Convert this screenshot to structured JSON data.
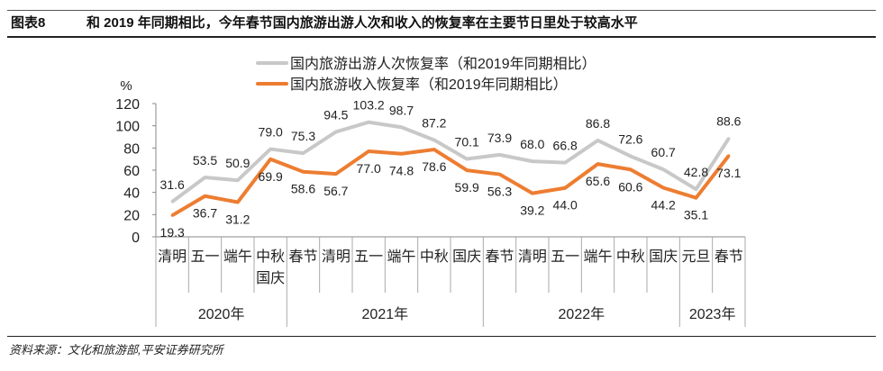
{
  "header": {
    "figure_no": "图表8",
    "title": "和 2019 年同期相比，今年春节国内旅游出游人次和收入的恢复率在主要节日里处于较高水平"
  },
  "footer": {
    "source": "资料来源：文化和旅游部,平安证券研究所"
  },
  "chart_data": {
    "type": "line",
    "ylabel": "%",
    "ylim": [
      0,
      120
    ],
    "yticks": [
      0,
      20,
      40,
      60,
      80,
      100,
      120
    ],
    "categories": [
      [
        "清明"
      ],
      [
        "五一"
      ],
      [
        "端午"
      ],
      [
        "中秋",
        "国庆"
      ],
      [
        "春节"
      ],
      [
        "清明"
      ],
      [
        "五一"
      ],
      [
        "端午"
      ],
      [
        "中秋"
      ],
      [
        "国庆"
      ],
      [
        "春节"
      ],
      [
        "清明"
      ],
      [
        "五一"
      ],
      [
        "端午"
      ],
      [
        "中秋"
      ],
      [
        "国庆"
      ],
      [
        "元旦"
      ],
      [
        "春节"
      ]
    ],
    "years": [
      {
        "label": "2020年",
        "count": 4
      },
      {
        "label": "2021年",
        "count": 6
      },
      {
        "label": "2022年",
        "count": 6
      },
      {
        "label": "2023年",
        "count": 2
      }
    ],
    "series": [
      {
        "name": "国内旅游出游人次恢复率（和2019年同期相比）",
        "color": "#c8c8c8",
        "values": [
          31.6,
          53.5,
          50.9,
          79.0,
          75.3,
          94.5,
          103.2,
          98.7,
          87.2,
          70.1,
          73.9,
          68.0,
          66.8,
          86.8,
          72.6,
          60.7,
          42.8,
          88.6
        ]
      },
      {
        "name": "国内旅游收入恢复率（和2019年同期相比）",
        "color": "#ed7d31",
        "values": [
          19.3,
          36.7,
          31.2,
          69.9,
          58.6,
          56.7,
          77.0,
          74.8,
          78.6,
          59.9,
          56.3,
          39.2,
          44.0,
          65.6,
          60.6,
          44.2,
          35.1,
          73.1
        ]
      }
    ],
    "legend": "top-center",
    "grid": false
  }
}
